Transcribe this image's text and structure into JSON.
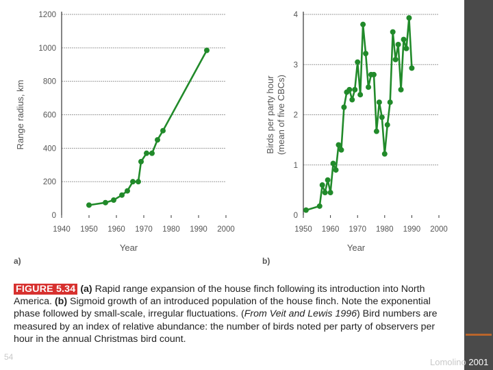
{
  "colors": {
    "series": "#218a2a",
    "grid": "#9a9a9a",
    "caption_label_bg": "#d7312f",
    "sidebar": "#4a4a4a"
  },
  "chart_data": [
    {
      "type": "line",
      "panel_label": "a)",
      "xlabel": "Year",
      "ylabel": "Range radius, km",
      "xlim": [
        1940,
        2000
      ],
      "ylim": [
        0,
        1200
      ],
      "xticks": [
        1940,
        1950,
        1960,
        1970,
        1980,
        1990,
        2000
      ],
      "yticks": [
        0,
        200,
        400,
        600,
        800,
        1000,
        1200
      ],
      "grid": "horizontal",
      "series": [
        {
          "x": [
            1950,
            1956,
            1959,
            1962,
            1964,
            1966,
            1968,
            1969,
            1971,
            1973,
            1975,
            1977,
            1993
          ],
          "y": [
            60,
            75,
            90,
            120,
            145,
            200,
            200,
            320,
            370,
            370,
            450,
            505,
            985
          ]
        }
      ]
    },
    {
      "type": "line",
      "panel_label": "b)",
      "xlabel": "Year",
      "ylabel": "Birds per party hour",
      "ylabel2": "(mean of five CBCs)",
      "xlim": [
        1950,
        2000
      ],
      "ylim": [
        0,
        4
      ],
      "xticks": [
        1950,
        1960,
        1970,
        1980,
        1990,
        2000
      ],
      "yticks": [
        0,
        1,
        2,
        3,
        4
      ],
      "grid": "horizontal",
      "series": [
        {
          "x": [
            1951,
            1956,
            1957,
            1958,
            1959,
            1960,
            1961,
            1962,
            1963,
            1964,
            1965,
            1966,
            1967,
            1968,
            1969,
            1970,
            1971,
            1972,
            1973,
            1974,
            1975,
            1976,
            1977,
            1978,
            1979,
            1980,
            1981,
            1982,
            1983,
            1984,
            1985,
            1986,
            1987,
            1988,
            1989,
            1990
          ],
          "y": [
            0.1,
            0.18,
            0.6,
            0.45,
            0.7,
            0.45,
            1.03,
            0.9,
            1.4,
            1.3,
            2.15,
            2.45,
            2.5,
            2.3,
            2.5,
            3.05,
            2.4,
            3.8,
            3.22,
            2.55,
            2.8,
            2.8,
            1.67,
            2.25,
            1.95,
            1.22,
            1.8,
            2.25,
            3.65,
            3.1,
            3.4,
            2.5,
            3.5,
            3.32,
            3.93,
            2.93
          ]
        }
      ]
    }
  ],
  "caption": {
    "figure_label": "FIGURE 5.34",
    "part_a": "(a)",
    "text_a": " Rapid range expansion of the house finch following its introduction into North America. ",
    "part_b": "(b)",
    "text_b": " Sigmoid growth of an introduced population of the house finch. Note the exponential phase followed by small-scale, irregular fluctuations. (",
    "source": "From Veit and Lewis 1996",
    "text_c": ") Bird numbers are measured by an index of relative abundance: the number of birds noted per party of observers per hour in the annual Christmas bird count."
  },
  "footer": {
    "page": "54",
    "credit": "Lomolino",
    "year": "2001"
  }
}
